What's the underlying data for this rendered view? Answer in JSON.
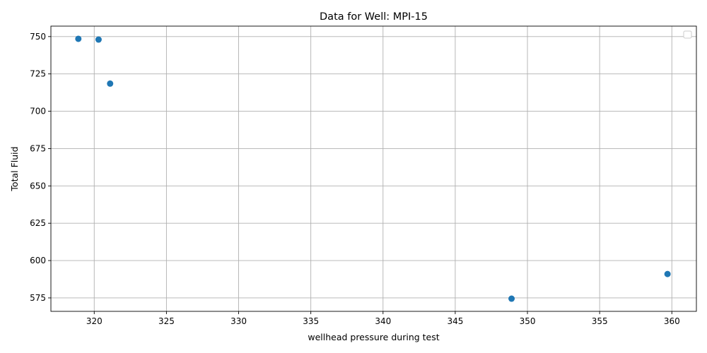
{
  "chart_data": {
    "type": "scatter",
    "title": "Data for Well: MPI-15",
    "xlabel": "wellhead pressure during test",
    "ylabel": "Total Fluid",
    "xlim": [
      317,
      361.7
    ],
    "ylim": [
      566,
      757
    ],
    "xticks": [
      320,
      325,
      330,
      335,
      340,
      345,
      350,
      355,
      360
    ],
    "yticks": [
      575,
      600,
      625,
      650,
      675,
      700,
      725,
      750
    ],
    "grid": true,
    "legend": "top-right (empty)",
    "series": [
      {
        "color": "#1f77b4",
        "points": [
          {
            "x": 318.9,
            "y": 748.5
          },
          {
            "x": 320.3,
            "y": 748.0
          },
          {
            "x": 321.1,
            "y": 718.5
          },
          {
            "x": 348.9,
            "y": 574.5
          },
          {
            "x": 359.7,
            "y": 591.0
          }
        ]
      }
    ]
  }
}
